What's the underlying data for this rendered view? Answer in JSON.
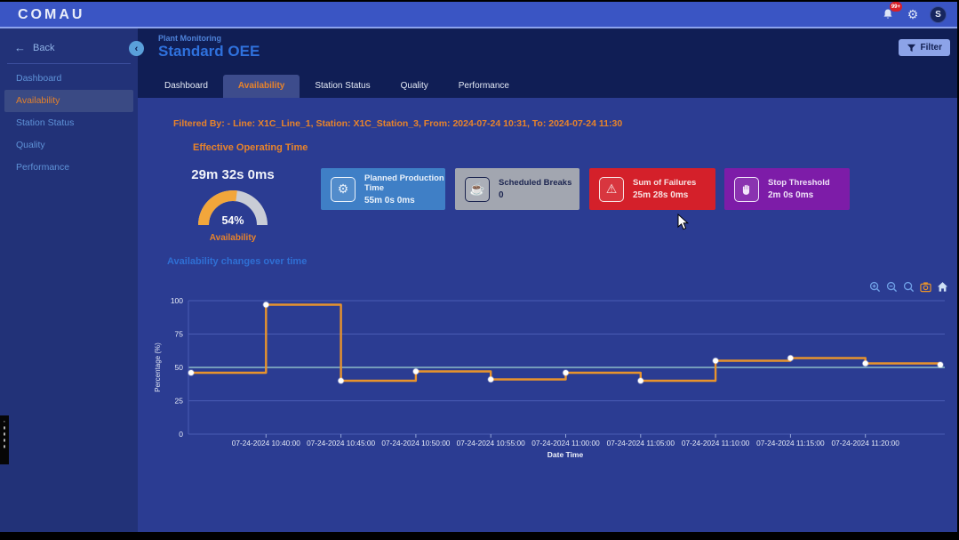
{
  "topbar": {
    "logo": "COMAU",
    "badge": "99+",
    "avatar": "S",
    "icons": [
      "notifications-bell",
      "settings-gear",
      "user-avatar"
    ]
  },
  "sidebar": {
    "back_label": "Back",
    "items": [
      {
        "label": "Dashboard",
        "active": false
      },
      {
        "label": "Availability",
        "active": true
      },
      {
        "label": "Station Status",
        "active": false
      },
      {
        "label": "Quality",
        "active": false
      },
      {
        "label": "Performance",
        "active": false
      }
    ]
  },
  "header": {
    "breadcrumb": "Plant Monitoring",
    "title": "Standard OEE",
    "filter_label": "Filter"
  },
  "tabs": [
    {
      "label": "Dashboard",
      "active": false
    },
    {
      "label": "Availability",
      "active": true
    },
    {
      "label": "Station Status",
      "active": false
    },
    {
      "label": "Quality",
      "active": false
    },
    {
      "label": "Performance",
      "active": false
    }
  ],
  "filters": {
    "summary": "Filtered By: - Line: X1C_Line_1, Station: X1C_Station_3, From: 2024-07-24 10:31, To: 2024-07-24 11:30"
  },
  "eot": {
    "section_title": "Effective Operating Time",
    "duration": "29m 32s 0ms",
    "percent": 54,
    "percent_label": "54%",
    "caption": "Availability",
    "gauge_color": "#F2A63B",
    "gauge_track_color": "#C9CDD6"
  },
  "kpi_cards": [
    {
      "icon": "gear-icon",
      "title": "Planned Production Time",
      "value": "55m 0s 0ms",
      "color": "#3F7FC6",
      "text_color": "#EAF2FB"
    },
    {
      "icon": "coffee-cup-icon",
      "title": "Scheduled Breaks",
      "value": "0",
      "color": "#A2A6B0",
      "text_color": "#1C2550"
    },
    {
      "icon": "warning-triangle-icon",
      "title": "Sum of Failures",
      "value": "25m 28s 0ms",
      "color": "#D4202A",
      "text_color": "#F7E2E2"
    },
    {
      "icon": "hand-icon",
      "title": "Stop Threshold",
      "value": "2m 0s 0ms",
      "color": "#7D1CA8",
      "text_color": "#EFE2F8"
    }
  ],
  "chart_toolbar": {
    "icons": [
      "zoom-in",
      "zoom-out",
      "box-zoom",
      "camera-download",
      "home-reset"
    ]
  },
  "chart_data": {
    "type": "line",
    "step": true,
    "title": "Availability changes over time",
    "xlabel": "Date Time",
    "ylabel": "Percentage (%)",
    "ylim": [
      0,
      100
    ],
    "yticks": [
      0,
      25,
      50,
      75,
      100
    ],
    "grid": true,
    "line_color": "#E8932C",
    "marker_color": "#FFFFFF",
    "x_tick_labels": [
      "07-24-2024 10:40:00",
      "07-24-2024 10:45:00",
      "07-24-2024 10:50:00",
      "07-24-2024 10:55:00",
      "07-24-2024 11:00:00",
      "07-24-2024 11:05:00",
      "07-24-2024 11:10:00",
      "07-24-2024 11:15:00",
      "07-24-2024 11:20:00"
    ],
    "series": [
      {
        "name": "Availability",
        "x": [
          "07-24-2024 10:35:00",
          "07-24-2024 10:40:00",
          "07-24-2024 10:45:00",
          "07-24-2024 10:50:00",
          "07-24-2024 10:55:00",
          "07-24-2024 11:00:00",
          "07-24-2024 11:05:00",
          "07-24-2024 11:10:00",
          "07-24-2024 11:15:00",
          "07-24-2024 11:20:00",
          "07-24-2024 11:25:00"
        ],
        "values": [
          46,
          97,
          40,
          47,
          41,
          46,
          40,
          55,
          57,
          53,
          52
        ]
      }
    ]
  }
}
